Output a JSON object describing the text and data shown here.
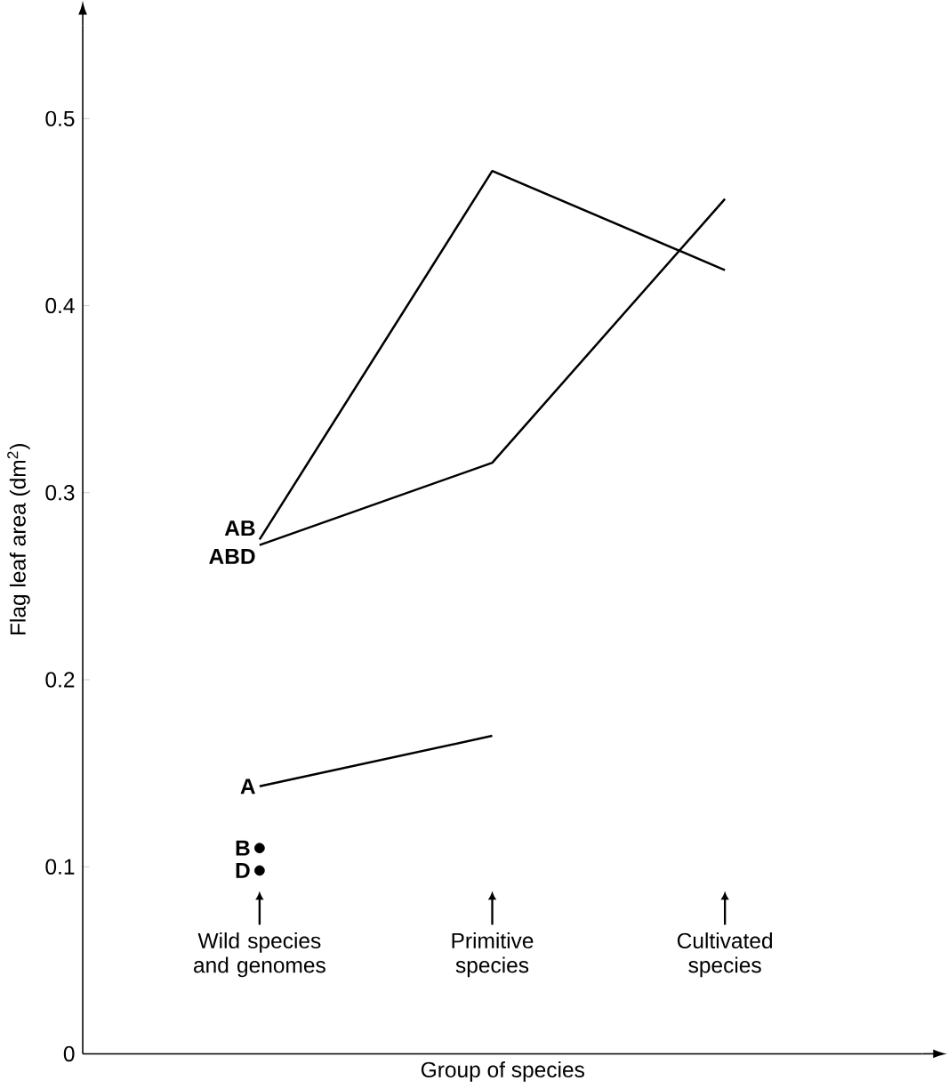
{
  "chart_data": {
    "type": "line",
    "categories": [
      "Wild species and genomes",
      "Primitive species",
      "Cultivated species"
    ],
    "xlabel": "Group of species",
    "ylabel": "Flag leaf area (dm$^{2}$)",
    "ylim": [
      0,
      0.55
    ],
    "yticks": [
      0,
      0.1,
      0.2,
      0.3,
      0.4,
      0.5
    ],
    "grid": false,
    "series": [
      {
        "name": "AB",
        "color": "#000000",
        "values": [
          0.275,
          0.472,
          0.419
        ]
      },
      {
        "name": "ABD",
        "color": "#000000",
        "values": [
          0.272,
          0.316,
          0.457
        ]
      },
      {
        "name": "A",
        "color": "#000000",
        "values": [
          0.143,
          0.17,
          null
        ]
      },
      {
        "name": "B",
        "type": "scatter",
        "color": "#000000",
        "values": [
          0.11,
          null,
          null
        ]
      },
      {
        "name": "D",
        "type": "scatter",
        "color": "#000000",
        "values": [
          0.098,
          null,
          null
        ]
      }
    ]
  }
}
